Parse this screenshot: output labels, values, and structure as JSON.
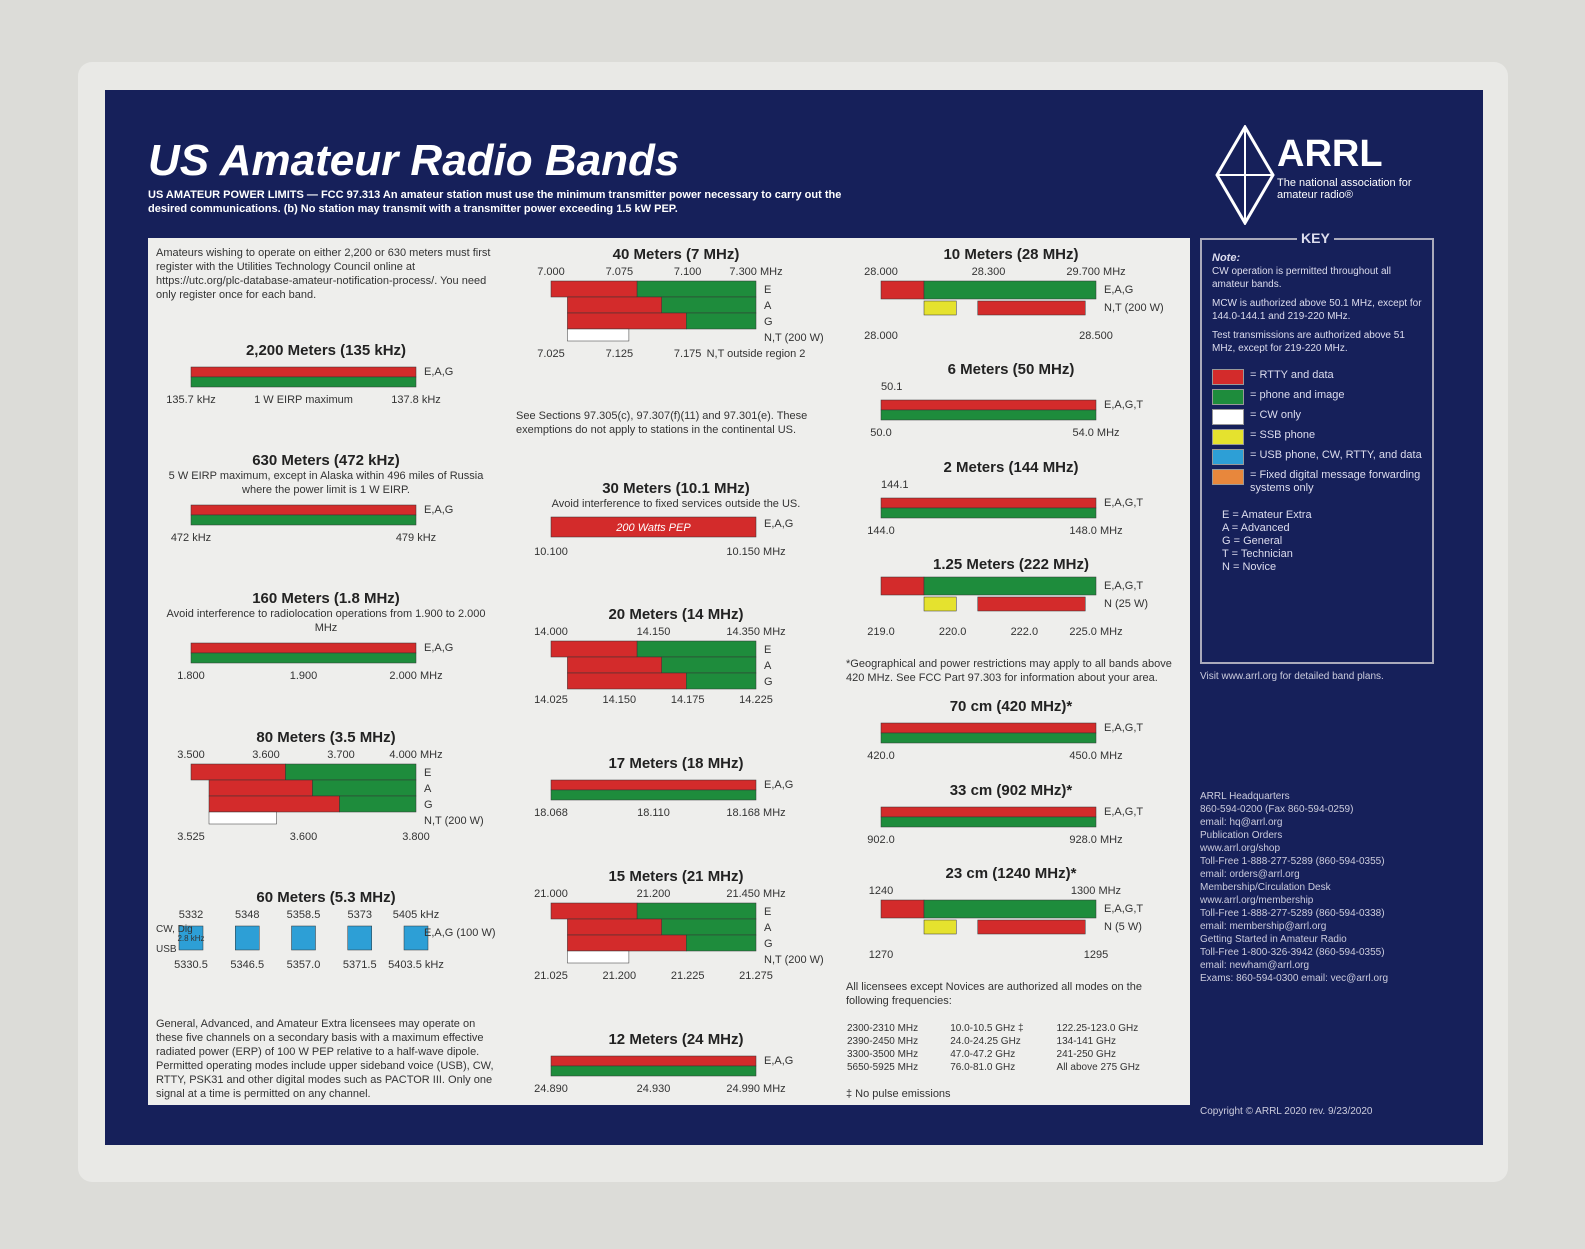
{
  "header": {
    "title": "US Amateur Radio Bands",
    "power_limits": "US AMATEUR POWER LIMITS — FCC 97.313  An amateur station must use the minimum transmitter power necessary to carry out the desired communications.  (b) No station may transmit with a transmitter power exceeding 1.5 kW PEP."
  },
  "logo": {
    "name": "ARRL",
    "tagline": "The national association for amateur radio®"
  },
  "columns": [
    [
      {
        "text": "Amateurs wishing to operate on either 2,200 or 630 meters must first register with the Utilities Technology Council online at https://utc.org/plc-database-amateur-notification-process/. You need only register once for each band."
      },
      {
        "title": "2,200 Meters (135 kHz)",
        "bottom": [
          "135.7 kHz",
          "1 W EIRP maximum",
          "137.8 kHz"
        ],
        "modes": [
          "E,A,G"
        ]
      },
      {
        "title": "630 Meters (472 kHz)",
        "note": "5 W EIRP maximum, except in Alaska within 496 miles of Russia where the power limit is 1 W EIRP.",
        "bottom": [
          "472 kHz",
          "479 kHz"
        ],
        "modes": [
          "E,A,G"
        ]
      },
      {
        "title": "160 Meters (1.8 MHz)",
        "note": "Avoid interference to radiolocation operations from 1.900 to 2.000 MHz",
        "bottom": [
          "1.800",
          "1.900",
          "2.000 MHz"
        ],
        "modes": [
          "E,A,G"
        ]
      },
      {
        "title": "80 Meters (3.5 MHz)",
        "top": [
          "3.500",
          "3.600",
          "3.700",
          "4.000 MHz"
        ],
        "bottom": [
          "3.525",
          "3.600",
          "3.800"
        ],
        "modes": [
          "E",
          "A",
          "G",
          "N,T (200 W)"
        ]
      },
      {
        "title": "60 Meters (5.3 MHz)",
        "top": [
          "5332",
          "5348",
          "5358.5",
          "5373",
          "5405 kHz"
        ],
        "bottom": [
          "5330.5",
          "5346.5",
          "5357.0",
          "5371.5",
          "5403.5 kHz"
        ],
        "modes": [
          "E,A,G (100 W)"
        ],
        "channel": "2.8 kHz",
        "side": [
          "CW, Dig",
          "USB"
        ]
      },
      {
        "text": "General, Advanced, and Amateur Extra licensees may operate on these five channels on a secondary basis with a maximum effective radiated power (ERP) of 100 W PEP relative to a half-wave dipole. Permitted operating modes include upper sideband voice (USB), CW, RTTY, PSK31 and other digital modes such as PACTOR III. Only one signal at a time is permitted on any channel."
      }
    ],
    [
      {
        "title": "40 Meters (7 MHz)",
        "top": [
          "7.000",
          "7.075",
          "7.100",
          "7.300 MHz"
        ],
        "bottom": [
          "7.025",
          "7.125",
          "7.175",
          "N,T outside region 2"
        ],
        "modes": [
          "E",
          "A",
          "G",
          "N,T (200 W)"
        ]
      },
      {
        "text": "See Sections 97.305(c), 97.307(f)(11) and 97.301(e). These exemptions do not apply to stations in the continental US."
      },
      {
        "title": "30 Meters (10.1 MHz)",
        "note": "Avoid interference to fixed services outside the US.",
        "bar_text": "200 Watts PEP",
        "bottom": [
          "10.100",
          "10.150 MHz"
        ],
        "modes": [
          "E,A,G"
        ]
      },
      {
        "title": "20 Meters (14 MHz)",
        "top": [
          "14.000",
          "14.150",
          "14.350 MHz"
        ],
        "bottom": [
          "14.025",
          "14.150",
          "14.175",
          "14.225"
        ],
        "modes": [
          "E",
          "A",
          "G"
        ]
      },
      {
        "title": "17 Meters (18 MHz)",
        "bottom": [
          "18.068",
          "18.110",
          "18.168 MHz"
        ],
        "modes": [
          "E,A,G"
        ]
      },
      {
        "title": "15 Meters (21 MHz)",
        "top": [
          "21.000",
          "21.200",
          "21.450 MHz"
        ],
        "bottom": [
          "21.025",
          "21.200",
          "21.225",
          "21.275"
        ],
        "modes": [
          "E",
          "A",
          "G",
          "N,T (200 W)"
        ]
      },
      {
        "title": "12 Meters (24 MHz)",
        "bottom": [
          "24.890",
          "24.930",
          "24.990 MHz"
        ],
        "modes": [
          "E,A,G"
        ]
      }
    ],
    [
      {
        "title": "10 Meters (28 MHz)",
        "top": [
          "28.000",
          "28.300",
          "29.700 MHz"
        ],
        "bottom": [
          "28.000",
          "28.500"
        ],
        "modes": [
          "E,A,G",
          "N,T (200 W)"
        ]
      },
      {
        "title": "6 Meters (50 MHz)",
        "top": [
          "50.1"
        ],
        "bottom": [
          "50.0",
          "54.0 MHz"
        ],
        "modes": [
          "E,A,G,T"
        ]
      },
      {
        "title": "2 Meters (144 MHz)",
        "top": [
          "144.1"
        ],
        "bottom": [
          "144.0",
          "148.0 MHz"
        ],
        "modes": [
          "E,A,G,T"
        ]
      },
      {
        "title": "1.25 Meters (222 MHz)",
        "bottom": [
          "219.0",
          "220.0",
          "222.0",
          "225.0 MHz"
        ],
        "modes": [
          "E,A,G,T",
          "N (25 W)"
        ]
      },
      {
        "text": "*Geographical and power restrictions may apply to all bands above 420 MHz. See FCC Part 97.303 for information about your area."
      },
      {
        "title": "70 cm (420 MHz)*",
        "bottom": [
          "420.0",
          "450.0 MHz"
        ],
        "modes": [
          "E,A,G,T"
        ]
      },
      {
        "title": "33 cm (902 MHz)*",
        "bottom": [
          "902.0",
          "928.0 MHz"
        ],
        "modes": [
          "E,A,G,T"
        ]
      },
      {
        "title": "23 cm (1240 MHz)*",
        "top": [
          "1240",
          "1300 MHz"
        ],
        "bottom": [
          "1270",
          "1295"
        ],
        "modes": [
          "E,A,G,T",
          "N (5 W)"
        ]
      },
      {
        "text": "All licensees except Novices are authorized all modes on the following frequencies:"
      },
      {
        "rows": [
          [
            "2300-2310 MHz",
            "10.0-10.5 GHz ‡",
            "122.25-123.0 GHz"
          ],
          [
            "2390-2450 MHz",
            "24.0-24.25 GHz",
            "134-141 GHz"
          ],
          [
            "3300-3500 MHz",
            "47.0-47.2 GHz",
            "241-250 GHz"
          ],
          [
            "5650-5925 MHz",
            "76.0-81.0 GHz",
            "All above 275 GHz"
          ]
        ]
      },
      {
        "text": "‡ No pulse emissions"
      }
    ]
  ],
  "key": {
    "title": "KEY",
    "note_title": "Note:",
    "notes": [
      "CW operation is permitted throughout all amateur bands.",
      "MCW is authorized above 50.1 MHz, except for 144.0-144.1 and 219-220 MHz.",
      "Test transmissions are authorized above 51 MHz, except for 219-220 MHz."
    ],
    "legend": [
      {
        "color": "#d32b2b",
        "label": "= RTTY and data"
      },
      {
        "color": "#1e8c3c",
        "label": "= phone and image"
      },
      {
        "color": "#ffffff",
        "label": "= CW only"
      },
      {
        "color": "#e5e22e",
        "label": "= SSB phone"
      },
      {
        "color": "#2d9fd6",
        "label": "= USB phone, CW, RTTY, and data"
      },
      {
        "color": "#e8873c",
        "label": "= Fixed digital message forwarding systems only"
      }
    ],
    "classes": [
      "E = Amateur Extra",
      "A = Advanced",
      "G = General",
      "T = Technician",
      "N = Novice"
    ]
  },
  "visit": "Visit www.arrl.org for detailed band plans.",
  "contacts": [
    "ARRL Headquarters",
    "860-594-0200 (Fax 860-594-0259)",
    "email: hq@arrl.org",
    "Publication Orders",
    "www.arrl.org/shop",
    "Toll-Free 1-888-277-5289 (860-594-0355)",
    "email: orders@arrl.org",
    "Membership/Circulation Desk",
    "www.arrl.org/membership",
    "Toll-Free 1-888-277-5289 (860-594-0338)",
    "email: membership@arrl.org",
    "Getting Started in Amateur Radio",
    "Toll-Free 1-800-326-3942 (860-594-0355)",
    "email: newham@arrl.org",
    "Exams: 860-594-0300  email: vec@arrl.org"
  ],
  "copyright": "Copyright © ARRL 2020   rev. 9/23/2020"
}
